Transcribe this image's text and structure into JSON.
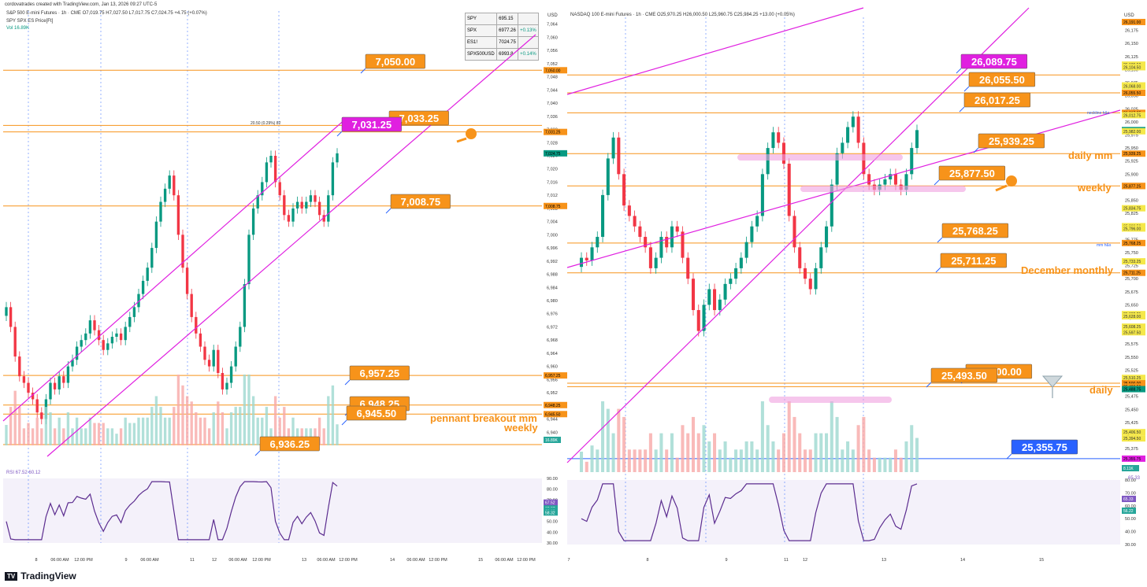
{
  "header": {
    "credit": "cordovatrades created with TradingView.com, Jan 13, 2026 09:27 UTC-5",
    "brand": "TradingView"
  },
  "left_panel": {
    "title_line": "S&P 500 E-mini Futures · 1h · CME  O7,019.75  H7,027.50  L7,017.75  C7,024.75  +4.75 (+0.07%)",
    "line2": "SPY SPX ES Price[Ft]",
    "line3": "Vol  16.89K",
    "watchlist": [
      {
        "sym": "SPY",
        "val": "695.15",
        "chg": ""
      },
      {
        "sym": "SPX",
        "val": "6977.26",
        "chg": "+0.13%"
      },
      {
        "sym": "ES1!",
        "val": "7024.75",
        "chg": ""
      },
      {
        "sym": "SPX500USD",
        "val": "6993.8",
        "chg": "+0.14%"
      }
    ],
    "currency": "USD",
    "rsi_label": "RSI  67.52  60.12",
    "annotations": {
      "peak_label": "20.50 (0.29%) 82",
      "pennant": "pennant breakout mm",
      "weekly": "weekly"
    }
  },
  "right_panel": {
    "title_line": "NASDAQ 100 E-mini Futures · 1h · CME  O25,970.25  H26,000.50  L25,960.75  C25,984.25  +13.00 (+0.05%)",
    "currency": "USD",
    "rsi_label": "65.33",
    "annotations": {
      "daily_mm": "daily mm",
      "weekly": "weekly",
      "december": "December monthly",
      "daily": "daily",
      "neckline": "neckline h&s",
      "mm_hs": "mm h&s"
    }
  },
  "chart_data": [
    {
      "type": "candlestick",
      "title": "S&P 500 E-mini Futures · 1h · CME",
      "ylim": [
        6936,
        7068
      ],
      "y_ticks": [
        7064,
        7060,
        7056,
        7052,
        7048,
        7044,
        7040,
        7036,
        7032,
        7028,
        7024,
        7020,
        7016,
        7012,
        7008,
        7004,
        7000,
        6996,
        6992,
        6988,
        6984,
        6980,
        6976,
        6972,
        6968,
        6964,
        6960,
        6956,
        6952,
        6948,
        6944,
        6940
      ],
      "x_ticks": [
        "8",
        "06:00 AM",
        "12:00 PM",
        "9",
        "06:00 AM",
        "11",
        "12",
        "06:00 AM",
        "12:00 PM",
        "13",
        "06:00 AM",
        "12:00 PM",
        "14",
        "06:00 AM",
        "12:00 PM",
        "15",
        "06:00 AM",
        "12:00 PM"
      ],
      "levels": [
        {
          "value": 7050.0,
          "label": "7,050.00",
          "color": "#f7931a"
        },
        {
          "value": 7033.25,
          "label": "7,033.25",
          "color": "#f7931a"
        },
        {
          "value": 7031.25,
          "label": "7,031.25",
          "color": "#e020e0"
        },
        {
          "value": 7008.75,
          "label": "7,008.75",
          "color": "#f7931a"
        },
        {
          "value": 6957.25,
          "label": "6,957.25",
          "color": "#f7931a"
        },
        {
          "value": 6948.25,
          "label": "6,948.25",
          "color": "#f7931a"
        },
        {
          "value": 6945.5,
          "label": "6,945.50",
          "color": "#f7931a"
        },
        {
          "value": 6936.25,
          "label": "6,936.25",
          "color": "#f7931a"
        }
      ],
      "axis_tags": [
        {
          "value": 7050.0,
          "label": "7,050.00",
          "color": "#f7931a"
        },
        {
          "value": 7031.25,
          "label": "7,031.25",
          "color": "#f7931a"
        },
        {
          "value": 7024.75,
          "label": "7,024.75",
          "color": "#089981"
        },
        {
          "value": 7008.75,
          "label": "7,008.75",
          "color": "#f7931a"
        },
        {
          "value": 6957.25,
          "label": "6,957.25",
          "color": "#f7931a"
        },
        {
          "value": 6948.25,
          "label": "6,948.25",
          "color": "#f7931a"
        },
        {
          "value": 6945.5,
          "label": "6,945.50",
          "color": "#f7931a"
        }
      ],
      "last_price": 7024.75,
      "volume_tag": "16.89K",
      "closes": [
        6978,
        6972,
        6963,
        6957,
        6955,
        6952,
        6950,
        6946,
        6944,
        6950,
        6955,
        6953,
        6957,
        6955,
        6960,
        6962,
        6966,
        6968,
        6970,
        6974,
        6971,
        6968,
        6965,
        6967,
        6969,
        6970,
        6968,
        6972,
        6975,
        6978,
        6982,
        6986,
        6990,
        6996,
        7004,
        7010,
        7014,
        7018,
        7012,
        7000,
        6990,
        6982,
        6975,
        6970,
        6966,
        6962,
        6960,
        6965,
        6958,
        6953,
        6955,
        6960,
        6966,
        6972,
        6985,
        7000,
        7008,
        7012,
        7016,
        7022,
        7024,
        7016,
        7012,
        7006,
        7004,
        7008,
        7010,
        7008,
        7010,
        7012,
        7010,
        7006,
        7004,
        7012,
        7022,
        7024.75
      ],
      "rsi_ylim": [
        30,
        90
      ],
      "rsi_ticks": [
        90,
        80,
        70,
        60,
        50,
        40,
        30
      ],
      "rsi_levels": [
        {
          "value": 67.52,
          "label": "67.52"
        },
        {
          "value": 62.07,
          "label": "62.07"
        },
        {
          "value": 60.12,
          "label": "60.12"
        },
        {
          "value": 58.32,
          "label": "58.32"
        }
      ]
    },
    {
      "type": "candlestick",
      "title": "NASDAQ 100 E-mini Futures · 1h · CME",
      "ylim": [
        25330,
        26200
      ],
      "y_ticks": [
        26175,
        26150,
        26125,
        26100,
        26075,
        26050,
        26025,
        26000,
        25975,
        25950,
        25925,
        25900,
        25875,
        25850,
        25825,
        25800,
        25775,
        25750,
        25725,
        25700,
        25675,
        25650,
        25625,
        25600,
        25575,
        25550,
        25525,
        25500,
        25475,
        25450,
        25425,
        25400,
        25375
      ],
      "x_ticks": [
        "7",
        "8",
        "9",
        "11",
        "12",
        "13",
        "14",
        "15"
      ],
      "levels": [
        {
          "value": 26089.75,
          "label": "26,089.75",
          "color": "#e020e0"
        },
        {
          "value": 26055.5,
          "label": "26,055.50",
          "color": "#f7931a"
        },
        {
          "value": 26017.25,
          "label": "26,017.25",
          "color": "#f7931a"
        },
        {
          "value": 25939.25,
          "label": "25,939.25",
          "color": "#f7931a"
        },
        {
          "value": 25877.5,
          "label": "25,877.50",
          "color": "#f7931a"
        },
        {
          "value": 25768.25,
          "label": "25,768.25",
          "color": "#f7931a"
        },
        {
          "value": 25711.25,
          "label": "25,711.25",
          "color": "#f7931a"
        },
        {
          "value": 25500.0,
          "label": "25,500.00",
          "color": "#f7931a"
        },
        {
          "value": 25493.5,
          "label": "25,493.50",
          "color": "#f7931a"
        },
        {
          "value": 25355.75,
          "label": "25,355.75",
          "color": "#2962ff"
        }
      ],
      "axis_tags": [
        {
          "value": 26191.0,
          "label": "26,191.00",
          "color": "#f7931a"
        },
        {
          "value": 26109.5,
          "label": "26,109.50",
          "color": "#f5e84a"
        },
        {
          "value": 26104.5,
          "label": "26,104.50",
          "color": "#f5e84a"
        },
        {
          "value": 26069.75,
          "label": "26,069.75",
          "color": "#f5e84a"
        },
        {
          "value": 26068.0,
          "label": "26,068.00",
          "color": "#f5e84a"
        },
        {
          "value": 26055.5,
          "label": "26,055.50",
          "color": "#f7931a"
        },
        {
          "value": 26017.25,
          "label": "26,017.25",
          "color": "#f7931a"
        },
        {
          "value": 26012.75,
          "label": "26,012.75",
          "color": "#f5e84a"
        },
        {
          "value": 25984.25,
          "label": "25,984.25",
          "color": "#089981"
        },
        {
          "value": 25982.0,
          "label": "25,982.00",
          "color": "#f5e84a"
        },
        {
          "value": 25939.25,
          "label": "25,939.25",
          "color": "#f7931a"
        },
        {
          "value": 25877.5,
          "label": "25,877.50",
          "color": "#f7931a"
        },
        {
          "value": 25877.25,
          "label": "25,877.25",
          "color": "#f7931a"
        },
        {
          "value": 25834.75,
          "label": "25,834.75",
          "color": "#f5e84a"
        },
        {
          "value": 25800.5,
          "label": "25,800.50",
          "color": "#f5e84a"
        },
        {
          "value": 25796.0,
          "label": "25,796.00",
          "color": "#f5e84a"
        },
        {
          "value": 25768.25,
          "label": "25,768.25",
          "color": "#f7931a"
        },
        {
          "value": 25733.25,
          "label": "25,733.25",
          "color": "#f5e84a"
        },
        {
          "value": 25711.25,
          "label": "25,711.25",
          "color": "#f7931a"
        },
        {
          "value": 25632.25,
          "label": "25,632.25",
          "color": "#f5e84a"
        },
        {
          "value": 25628.0,
          "label": "25,628.00",
          "color": "#f5e84a"
        },
        {
          "value": 25608.25,
          "label": "25,608.25",
          "color": "#f5e84a"
        },
        {
          "value": 25597.5,
          "label": "25,597.50",
          "color": "#f5e84a"
        },
        {
          "value": 25510.25,
          "label": "25,510.25",
          "color": "#f5e84a"
        },
        {
          "value": 25500.0,
          "label": "25,500.00",
          "color": "#f7931a"
        },
        {
          "value": 25493.5,
          "label": "25,493.50",
          "color": "#f7931a"
        },
        {
          "value": 25488.75,
          "label": "25,488.75",
          "color": "#089981"
        },
        {
          "value": 25406.5,
          "label": "25,406.50",
          "color": "#f5e84a"
        },
        {
          "value": 25394.5,
          "label": "25,394.50",
          "color": "#f5e84a"
        },
        {
          "value": 25355.75,
          "label": "25,355.75",
          "color": "#e020e0"
        }
      ],
      "last_price": 25984.25,
      "volume_tag": "8.11K",
      "closes": [
        25740,
        25735,
        25760,
        25780,
        25860,
        25930,
        25970,
        25900,
        25840,
        25820,
        25800,
        25780,
        25760,
        25720,
        25740,
        25780,
        25760,
        25800,
        25790,
        25740,
        25700,
        25640,
        25600,
        25650,
        25680,
        25640,
        25660,
        25690,
        25700,
        25720,
        25740,
        25770,
        25800,
        25820,
        25900,
        25950,
        25980,
        25960,
        25920,
        25820,
        25760,
        25720,
        25700,
        25680,
        25720,
        25760,
        25800,
        25880,
        25940,
        25960,
        25990,
        26010,
        25960,
        25900,
        25880,
        25870,
        25880,
        25890,
        25900,
        25880,
        25870,
        25900,
        25950,
        25984.25
      ],
      "rsi_ylim": [
        30,
        80
      ],
      "rsi_ticks": [
        80,
        70,
        60,
        50,
        40,
        30
      ],
      "rsi_levels": [
        {
          "value": 65.33,
          "label": "65.33"
        },
        {
          "value": 56.22,
          "label": "56.22"
        }
      ]
    }
  ]
}
